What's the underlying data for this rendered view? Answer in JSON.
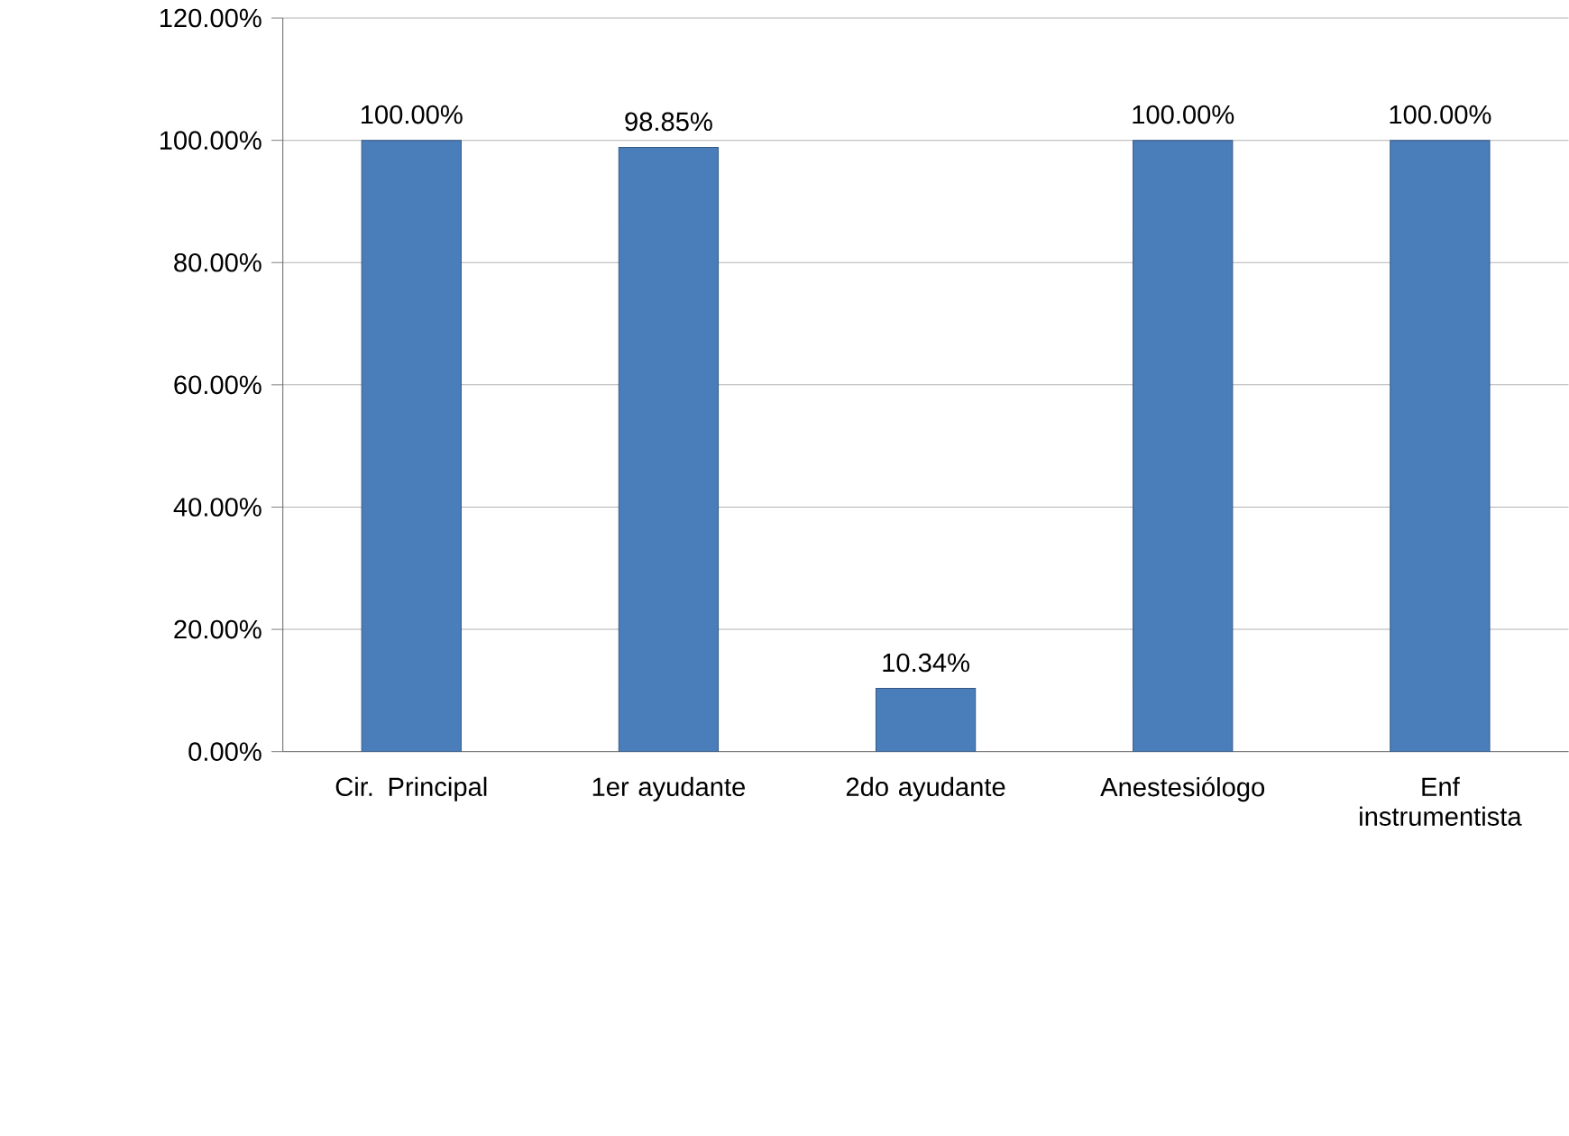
{
  "chart_data": {
    "type": "bar",
    "categories": [
      "Cir. Principal",
      "1er ayudante",
      "2do ayudante",
      "Anestesiólogo",
      "Enf instrumentista"
    ],
    "values": [
      100,
      98.85,
      10.34,
      100,
      100
    ],
    "value_labels": [
      "100.00%",
      "98.85%",
      "10.34%",
      "100.00%",
      "100.00%"
    ],
    "color": "#4a7ebb",
    "ylim": [
      0,
      120
    ],
    "yticks": [
      {
        "value": 0,
        "label": "0.00%"
      },
      {
        "value": 20,
        "label": "20.00%"
      },
      {
        "value": 40,
        "label": "40.00%"
      },
      {
        "value": 60,
        "label": "60.00%"
      },
      {
        "value": 80,
        "label": "80.00%"
      },
      {
        "value": 100,
        "label": "100.00%"
      },
      {
        "value": 120,
        "label": "120.00%"
      }
    ],
    "grid": "y"
  }
}
